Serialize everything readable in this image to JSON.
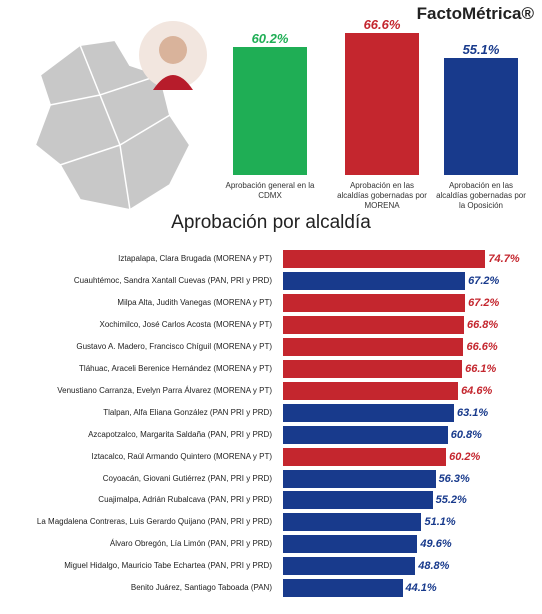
{
  "brand": "FactoMétrica®",
  "chart_data": [
    {
      "type": "bar",
      "categories": [
        "Aprobación general en la CDMX",
        "Aprobación en las alcaldías gobernadas por MORENA",
        "Aprobación en las alcaldías gobernadas por la Oposición"
      ],
      "values": [
        60.2,
        66.6,
        55.1
      ],
      "value_labels": [
        "60.2%",
        "66.6%",
        "55.1%"
      ],
      "colors": [
        "#1fae55",
        "#c4262e",
        "#183a8c"
      ]
    },
    {
      "type": "hbar",
      "title": "Aprobación por alcaldía",
      "categories": [
        "Iztapalapa, Clara Brugada (MORENA y PT)",
        "Cuauhtémoc, Sandra Xantall Cuevas (PAN, PRI y PRD)",
        "Milpa Alta, Judith Vanegas (MORENA y PT)",
        "Xochimilco, José Carlos Acosta (MORENA y PT)",
        "Gustavo A. Madero, Francisco Chíguil (MORENA y PT)",
        "Tláhuac, Araceli Berenice Hernández (MORENA y PT)",
        "Venustiano Carranza, Evelyn Parra Álvarez (MORENA y PT)",
        "Tlalpan, Alfa Eliana González (PAN PRI y PRD)",
        "Azcapotzalco, Margarita Saldaña (PAN, PRI y PRD)",
        "Iztacalco, Raúl Armando Quintero (MORENA y PT)",
        "Coyoacán, Giovani Gutiérrez (PAN, PRI y PRD)",
        "Cuajimalpa, Adrián Rubalcava (PAN, PRI y PRD)",
        "La Magdalena Contreras, Luis Gerardo Quijano (PAN, PRI y PRD)",
        "Álvaro Obregón, Lía Limón (PAN, PRI y PRD)",
        "Miguel Hidalgo, Mauricio Tabe Echartea (PAN, PRI y PRD)",
        "Benito Juárez, Santiago Taboada (PAN)"
      ],
      "values": [
        74.7,
        67.2,
        67.2,
        66.8,
        66.6,
        66.1,
        64.6,
        63.1,
        60.8,
        60.2,
        56.3,
        55.2,
        51.1,
        49.6,
        48.8,
        44.1
      ],
      "value_labels": [
        "74.7%",
        "67.2%",
        "67.2%",
        "66.8%",
        "66.6%",
        "66.1%",
        "64.6%",
        "63.1%",
        "60.8%",
        "60.2%",
        "56.3%",
        "55.2%",
        "51.1%",
        "49.6%",
        "48.8%",
        "44.1%"
      ],
      "colors": [
        "#c4262e",
        "#183a8c",
        "#c4262e",
        "#c4262e",
        "#c4262e",
        "#c4262e",
        "#c4262e",
        "#183a8c",
        "#183a8c",
        "#c4262e",
        "#183a8c",
        "#183a8c",
        "#183a8c",
        "#183a8c",
        "#183a8c",
        "#183a8c"
      ]
    }
  ]
}
